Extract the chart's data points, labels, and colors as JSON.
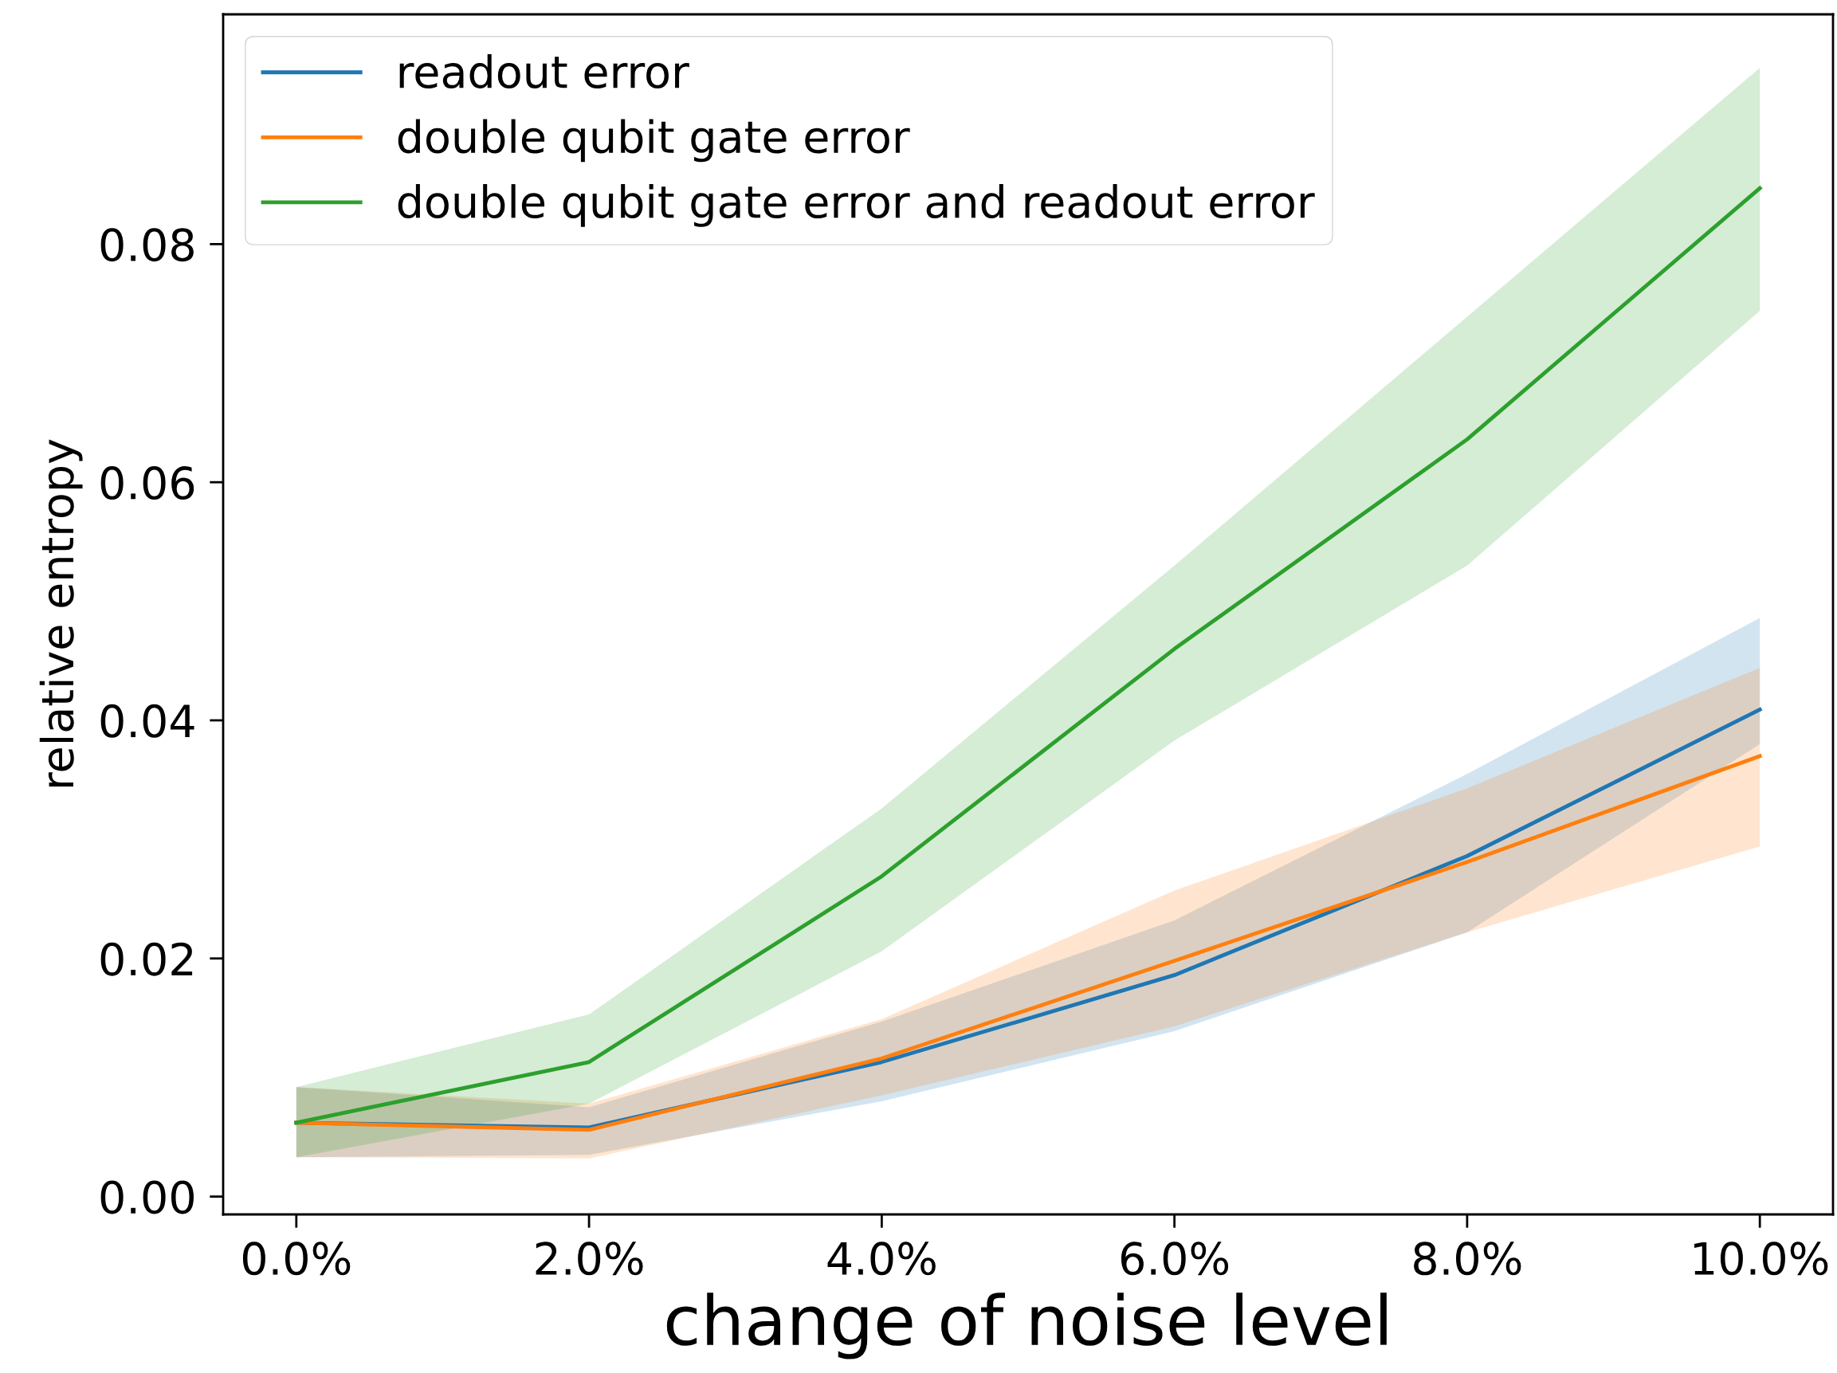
{
  "chart_data": {
    "type": "line",
    "xlabel": "change of noise level",
    "ylabel": "relative entropy",
    "x": [
      0,
      2,
      4,
      6,
      8,
      10
    ],
    "series": [
      {
        "name": "readout error",
        "color": "#1f77b4",
        "values": [
          0.0062,
          0.0058,
          0.0113,
          0.0186,
          0.0286,
          0.0409
        ],
        "lower": [
          0.0033,
          0.0035,
          0.008,
          0.0139,
          0.0222,
          0.038
        ],
        "upper": [
          0.0092,
          0.0075,
          0.0147,
          0.0232,
          0.0355,
          0.0486
        ]
      },
      {
        "name": "double qubit gate error",
        "color": "#ff7f0e",
        "values": [
          0.0062,
          0.0056,
          0.0116,
          0.0198,
          0.0281,
          0.037
        ],
        "lower": [
          0.0033,
          0.0032,
          0.0085,
          0.0143,
          0.0222,
          0.0294
        ],
        "upper": [
          0.0092,
          0.0078,
          0.0149,
          0.0257,
          0.0343,
          0.0444
        ]
      },
      {
        "name": "double qubit gate error and readout error",
        "color": "#2ca02c",
        "values": [
          0.0062,
          0.0113,
          0.0269,
          0.046,
          0.0636,
          0.0847
        ],
        "lower": [
          0.0033,
          0.0078,
          0.0206,
          0.0383,
          0.053,
          0.0744
        ],
        "upper": [
          0.0092,
          0.0153,
          0.0326,
          0.053,
          0.0739,
          0.0948
        ]
      }
    ],
    "xlim": [
      -0.5,
      10.5
    ],
    "ylim": [
      -0.0015,
      0.0993
    ],
    "xticks": [
      {
        "value": 0,
        "label": "0.0%"
      },
      {
        "value": 2,
        "label": "2.0%"
      },
      {
        "value": 4,
        "label": "4.0%"
      },
      {
        "value": 6,
        "label": "6.0%"
      },
      {
        "value": 8,
        "label": "8.0%"
      },
      {
        "value": 10,
        "label": "10.0%"
      }
    ],
    "yticks": [
      {
        "value": 0,
        "label": "0.00"
      },
      {
        "value": 0.02,
        "label": "0.02"
      },
      {
        "value": 0.04,
        "label": "0.04"
      },
      {
        "value": 0.06,
        "label": "0.06"
      },
      {
        "value": 0.08,
        "label": "0.08"
      }
    ],
    "grid": false,
    "legend": "top left",
    "line_style": "solid",
    "marker": "none"
  }
}
